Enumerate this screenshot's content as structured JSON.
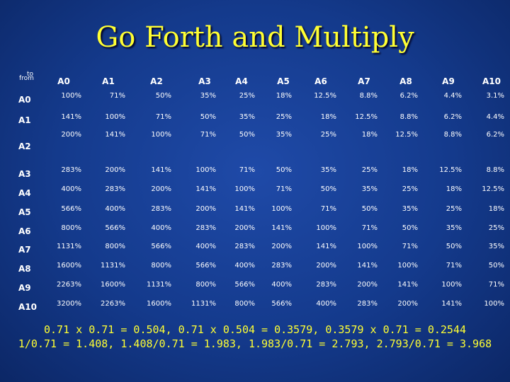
{
  "title": "Go Forth and Multiply",
  "corner": {
    "to": "to",
    "from": "from"
  },
  "columns": [
    "A0",
    "A1",
    "A2",
    "A3",
    "A4",
    "A5",
    "A6",
    "A7",
    "A8",
    "A9",
    "A10"
  ],
  "rows": [
    {
      "label": "A0",
      "cells": [
        "100%",
        "71%",
        "50%",
        "35%",
        "25%",
        "18%",
        "12.5%",
        "8.8%",
        "6.2%",
        "4.4%",
        "3.1%"
      ]
    },
    {
      "label": "A1",
      "cells": [
        "141%",
        "100%",
        "71%",
        "50%",
        "35%",
        "25%",
        "18%",
        "12.5%",
        "8.8%",
        "6.2%",
        "4.4%"
      ]
    },
    {
      "label": "A2",
      "cells": [
        "200%",
        "141%",
        "100%",
        "71%",
        "50%",
        "35%",
        "25%",
        "18%",
        "12.5%",
        "8.8%",
        "6.2%"
      ]
    },
    {
      "label": "A3",
      "cells": [
        "283%",
        "200%",
        "141%",
        "100%",
        "71%",
        "50%",
        "35%",
        "25%",
        "18%",
        "12.5%",
        "8.8%"
      ]
    },
    {
      "label": "A4",
      "cells": [
        "400%",
        "283%",
        "200%",
        "141%",
        "100%",
        "71%",
        "50%",
        "35%",
        "25%",
        "18%",
        "12.5%"
      ]
    },
    {
      "label": "A5",
      "cells": [
        "566%",
        "400%",
        "283%",
        "200%",
        "141%",
        "100%",
        "71%",
        "50%",
        "35%",
        "25%",
        "18%"
      ]
    },
    {
      "label": "A6",
      "cells": [
        "800%",
        "566%",
        "400%",
        "283%",
        "200%",
        "141%",
        "100%",
        "71%",
        "50%",
        "35%",
        "25%"
      ]
    },
    {
      "label": "A7",
      "cells": [
        "1131%",
        "800%",
        "566%",
        "400%",
        "283%",
        "200%",
        "141%",
        "100%",
        "71%",
        "50%",
        "35%"
      ]
    },
    {
      "label": "A8",
      "cells": [
        "1600%",
        "1131%",
        "800%",
        "566%",
        "400%",
        "283%",
        "200%",
        "141%",
        "100%",
        "71%",
        "50%"
      ]
    },
    {
      "label": "A9",
      "cells": [
        "2263%",
        "1600%",
        "1131%",
        "800%",
        "566%",
        "400%",
        "283%",
        "200%",
        "141%",
        "100%",
        "71%"
      ]
    },
    {
      "label": "A10",
      "cells": [
        "3200%",
        "2263%",
        "1600%",
        "1131%",
        "800%",
        "566%",
        "400%",
        "283%",
        "200%",
        "141%",
        "100%"
      ]
    }
  ],
  "formulas": [
    "0.71 x 0.71 = 0.504, 0.71 x 0.504 = 0.3579, 0.3579 x 0.71 = 0.2544",
    "1/0.71 = 1.408,  1.408/0.71 = 1.983, 1.983/0.71 = 2.793, 2.793/0.71 = 3.968"
  ],
  "colors": {
    "title": "#ffff33",
    "text": "#ffffff",
    "background": "#1a3f96"
  }
}
